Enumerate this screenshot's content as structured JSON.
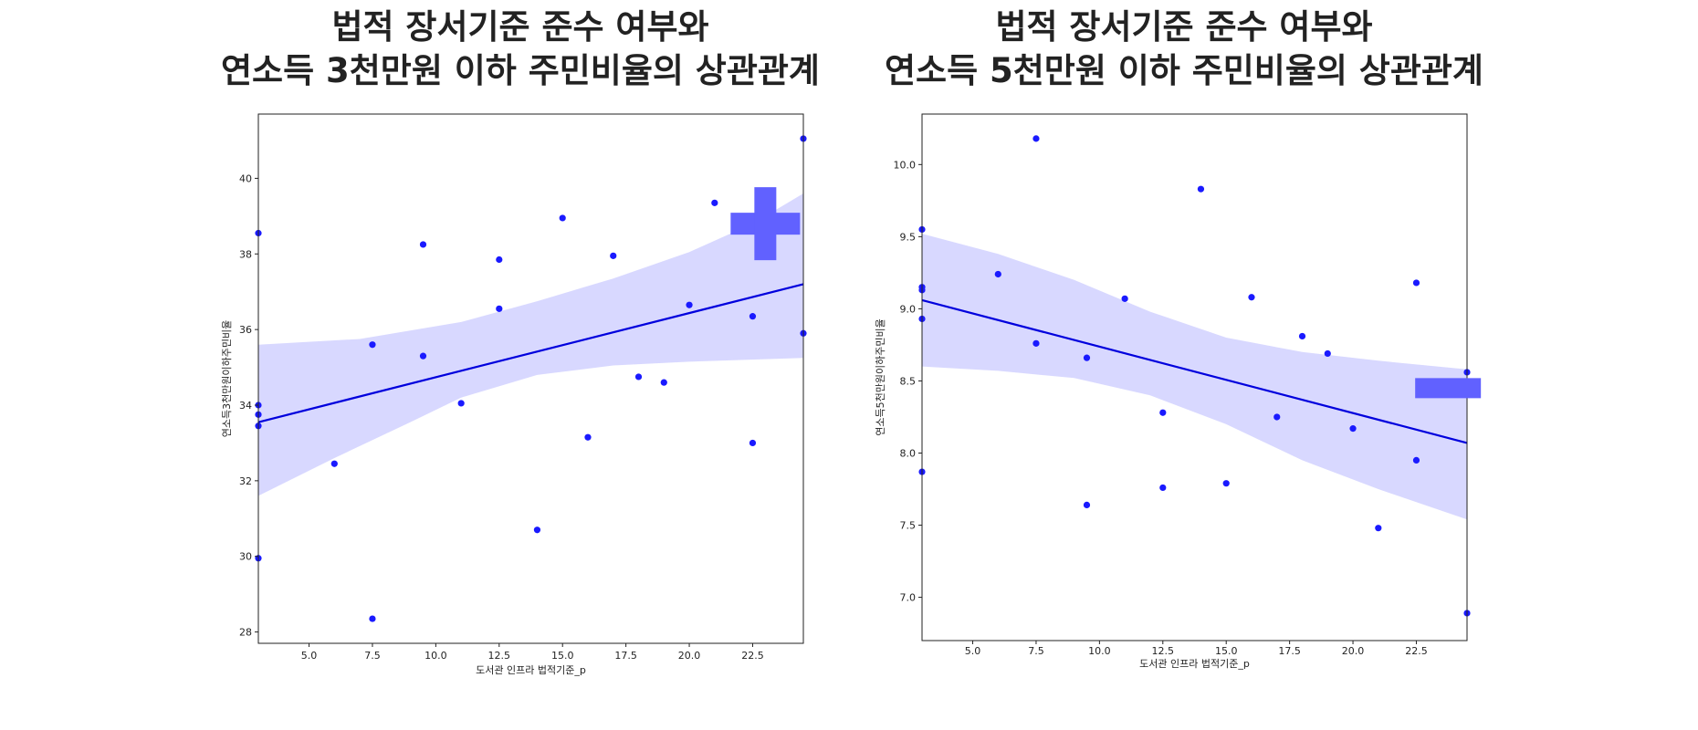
{
  "colors": {
    "series": "#1a1aff",
    "line": "#0000dd",
    "band": "#d6d6ff",
    "marker": "#6161ff"
  },
  "chart_data": [
    {
      "type": "scatter",
      "title_lines": [
        "법적 장서기준 준수 여부와",
        "연소득 3천만원 이하 주민비율의 상관관계"
      ],
      "xlabel": "도서관 인프라 법적기준_p",
      "ylabel": "연소득3천만원이하주민비율",
      "xlim": [
        3.0,
        24.5
      ],
      "ylim": [
        27.7,
        41.7
      ],
      "xticks": [
        5.0,
        7.5,
        10.0,
        12.5,
        15.0,
        17.5,
        20.0,
        22.5
      ],
      "yticks": [
        28,
        30,
        32,
        34,
        36,
        38,
        40
      ],
      "tick_decimals": {
        "x": 1,
        "y": 0
      },
      "grid": false,
      "points": [
        [
          3.0,
          38.55
        ],
        [
          3.0,
          34.0
        ],
        [
          3.0,
          33.75
        ],
        [
          3.0,
          33.45
        ],
        [
          3.0,
          29.95
        ],
        [
          6.0,
          32.45
        ],
        [
          7.5,
          35.6
        ],
        [
          7.5,
          28.35
        ],
        [
          9.5,
          38.25
        ],
        [
          9.5,
          35.3
        ],
        [
          11.0,
          34.05
        ],
        [
          12.5,
          37.85
        ],
        [
          12.5,
          36.55
        ],
        [
          14.0,
          30.7
        ],
        [
          15.0,
          38.95
        ],
        [
          16.0,
          33.15
        ],
        [
          17.0,
          37.95
        ],
        [
          18.0,
          34.75
        ],
        [
          19.0,
          34.6
        ],
        [
          20.0,
          36.65
        ],
        [
          21.0,
          39.35
        ],
        [
          22.5,
          36.35
        ],
        [
          22.5,
          33.0
        ],
        [
          24.5,
          41.05
        ],
        [
          24.5,
          35.9
        ]
      ],
      "regression": {
        "x": [
          3.0,
          24.5
        ],
        "y": [
          33.55,
          37.2
        ]
      },
      "ci_upper": [
        [
          3.0,
          35.6
        ],
        [
          7.0,
          35.75
        ],
        [
          11.0,
          36.2
        ],
        [
          14.0,
          36.75
        ],
        [
          17.0,
          37.35
        ],
        [
          20.0,
          38.05
        ],
        [
          22.5,
          38.8
        ],
        [
          24.5,
          39.6
        ]
      ],
      "ci_lower": [
        [
          3.0,
          31.6
        ],
        [
          6.0,
          32.6
        ],
        [
          9.0,
          33.55
        ],
        [
          11.0,
          34.2
        ],
        [
          14.0,
          34.8
        ],
        [
          17.0,
          35.05
        ],
        [
          20.0,
          35.15
        ],
        [
          24.5,
          35.25
        ]
      ],
      "marker": {
        "type": "plus",
        "x": 23.0,
        "y": 38.8
      }
    },
    {
      "type": "scatter",
      "title_lines": [
        "법적 장서기준 준수 여부와",
        "연소득 5천만원 이하 주민비율의 상관관계"
      ],
      "xlabel": "도서관 인프라 법적기준_p",
      "ylabel": "연소득5천만원이하주민비율",
      "xlim": [
        3.0,
        24.5
      ],
      "ylim": [
        6.7,
        10.35
      ],
      "xticks": [
        5.0,
        7.5,
        10.0,
        12.5,
        15.0,
        17.5,
        20.0,
        22.5
      ],
      "yticks": [
        7.0,
        7.5,
        8.0,
        8.5,
        9.0,
        9.5,
        10.0
      ],
      "tick_decimals": {
        "x": 1,
        "y": 1
      },
      "grid": false,
      "points": [
        [
          3.0,
          9.55
        ],
        [
          3.0,
          9.15
        ],
        [
          3.0,
          9.13
        ],
        [
          3.0,
          8.93
        ],
        [
          3.0,
          7.87
        ],
        [
          6.0,
          9.24
        ],
        [
          7.5,
          10.18
        ],
        [
          7.5,
          8.76
        ],
        [
          9.5,
          8.66
        ],
        [
          9.5,
          7.64
        ],
        [
          11.0,
          9.07
        ],
        [
          12.5,
          8.28
        ],
        [
          12.5,
          7.76
        ],
        [
          14.0,
          9.83
        ],
        [
          15.0,
          7.79
        ],
        [
          16.0,
          9.08
        ],
        [
          17.0,
          8.25
        ],
        [
          18.0,
          8.81
        ],
        [
          19.0,
          8.69
        ],
        [
          20.0,
          8.17
        ],
        [
          21.0,
          7.48
        ],
        [
          22.5,
          9.18
        ],
        [
          22.5,
          7.95
        ],
        [
          24.5,
          8.56
        ],
        [
          24.5,
          6.89
        ]
      ],
      "regression": {
        "x": [
          3.0,
          24.5
        ],
        "y": [
          9.06,
          8.07
        ]
      },
      "ci_upper": [
        [
          3.0,
          9.52
        ],
        [
          6.0,
          9.38
        ],
        [
          9.0,
          9.2
        ],
        [
          12.0,
          8.98
        ],
        [
          15.0,
          8.8
        ],
        [
          18.0,
          8.7
        ],
        [
          21.0,
          8.64
        ],
        [
          24.5,
          8.58
        ]
      ],
      "ci_lower": [
        [
          3.0,
          8.6
        ],
        [
          6.0,
          8.57
        ],
        [
          9.0,
          8.52
        ],
        [
          12.0,
          8.4
        ],
        [
          15.0,
          8.2
        ],
        [
          18.0,
          7.95
        ],
        [
          21.0,
          7.75
        ],
        [
          24.5,
          7.54
        ]
      ],
      "marker": {
        "type": "minus",
        "x": 23.75,
        "y": 8.45
      }
    }
  ]
}
